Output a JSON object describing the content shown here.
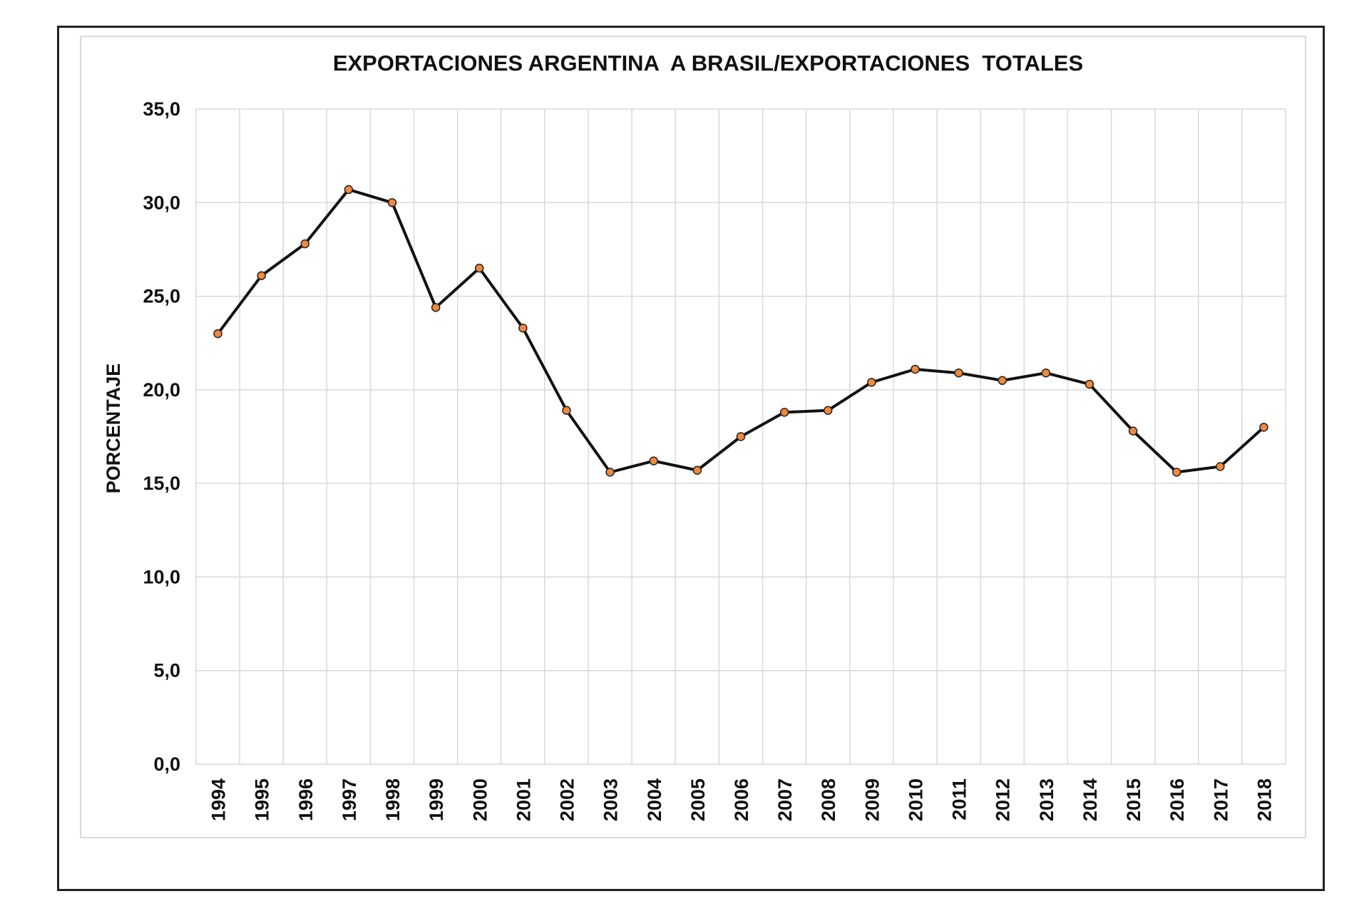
{
  "chart_data": {
    "type": "line",
    "title": "EXPORTACIONES ARGENTINA  A BRASIL/EXPORTACIONES  TOTALES",
    "xlabel": "",
    "ylabel": "PORCENTAJE",
    "ylim": [
      0,
      35
    ],
    "ytick_step": 5,
    "ytick_labels": [
      "0,0",
      "5,0",
      "10,0",
      "15,0",
      "20,0",
      "25,0",
      "30,0",
      "35,0"
    ],
    "categories": [
      "1994",
      "1995",
      "1996",
      "1997",
      "1998",
      "1999",
      "2000",
      "2001",
      "2002",
      "2003",
      "2004",
      "2005",
      "2006",
      "2007",
      "2008",
      "2009",
      "2010",
      "2011",
      "2012",
      "2013",
      "2014",
      "2015",
      "2016",
      "2017",
      "2018"
    ],
    "series": [
      {
        "values": [
          23.0,
          26.1,
          27.8,
          30.7,
          30.0,
          24.4,
          26.5,
          23.3,
          18.9,
          15.6,
          16.2,
          15.7,
          17.5,
          18.8,
          18.9,
          20.4,
          21.1,
          20.9,
          20.5,
          20.9,
          20.3,
          17.8,
          15.6,
          15.9,
          18.0
        ],
        "line_color": "#111111",
        "marker_color": "#f08a3c"
      }
    ],
    "grid": true,
    "legend": "none"
  }
}
